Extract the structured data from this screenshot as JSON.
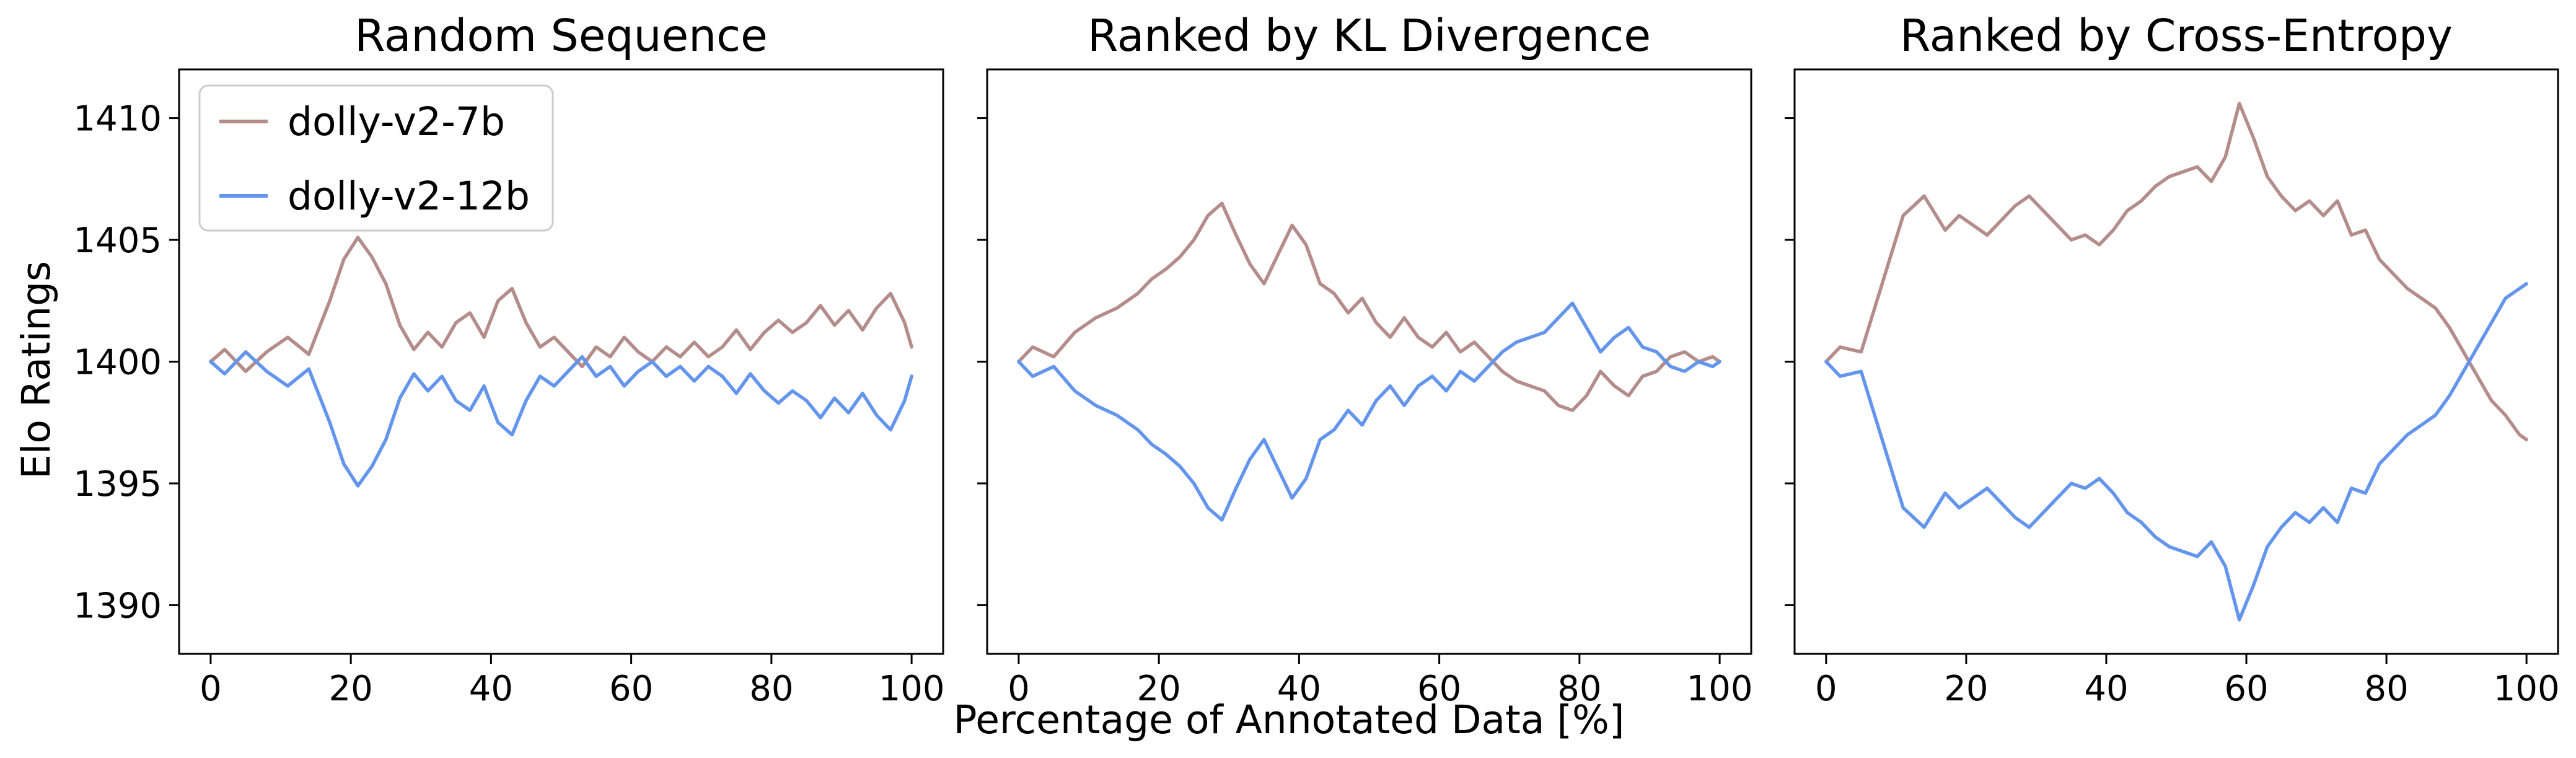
{
  "figure": {
    "xlabel": "Percentage of Annotated Data [%]",
    "ylabel": "Elo Ratings"
  },
  "colors": {
    "dolly-v2-7b": "#b48c8a",
    "dolly-v2-12b": "#6495ed"
  },
  "legend": {
    "placement": "upper-left",
    "entries": [
      "dolly-v2-7b",
      "dolly-v2-12b"
    ]
  },
  "chart_data": [
    {
      "type": "line",
      "title": "Random Sequence",
      "xlim": [
        0,
        100
      ],
      "ylim": [
        1388,
        1412
      ],
      "xticks": [
        0,
        20,
        40,
        60,
        80,
        100
      ],
      "yticks": [
        1390,
        1395,
        1400,
        1405,
        1410
      ],
      "x": [
        0,
        2,
        5,
        8,
        11,
        14,
        17,
        19,
        21,
        23,
        25,
        27,
        29,
        31,
        33,
        35,
        37,
        39,
        41,
        43,
        45,
        47,
        49,
        51,
        53,
        55,
        57,
        59,
        61,
        63,
        65,
        67,
        69,
        71,
        73,
        75,
        77,
        79,
        81,
        83,
        85,
        87,
        89,
        91,
        93,
        95,
        97,
        99,
        100
      ],
      "series": [
        {
          "name": "dolly-v2-7b",
          "values": [
            1400.0,
            1400.5,
            1399.6,
            1400.4,
            1401.0,
            1400.3,
            1402.5,
            1404.2,
            1405.1,
            1404.3,
            1403.2,
            1401.5,
            1400.5,
            1401.2,
            1400.6,
            1401.6,
            1402.0,
            1401.0,
            1402.5,
            1403.0,
            1401.6,
            1400.6,
            1401.0,
            1400.4,
            1399.8,
            1400.6,
            1400.2,
            1401.0,
            1400.4,
            1400.0,
            1400.6,
            1400.2,
            1400.8,
            1400.2,
            1400.6,
            1401.3,
            1400.5,
            1401.2,
            1401.7,
            1401.2,
            1401.6,
            1402.3,
            1401.5,
            1402.1,
            1401.3,
            1402.2,
            1402.8,
            1401.6,
            1400.6
          ]
        },
        {
          "name": "dolly-v2-12b",
          "values": [
            1400.0,
            1399.5,
            1400.4,
            1399.6,
            1399.0,
            1399.7,
            1397.5,
            1395.8,
            1394.9,
            1395.7,
            1396.8,
            1398.5,
            1399.5,
            1398.8,
            1399.4,
            1398.4,
            1398.0,
            1399.0,
            1397.5,
            1397.0,
            1398.4,
            1399.4,
            1399.0,
            1399.6,
            1400.2,
            1399.4,
            1399.8,
            1399.0,
            1399.6,
            1400.0,
            1399.4,
            1399.8,
            1399.2,
            1399.8,
            1399.4,
            1398.7,
            1399.5,
            1398.8,
            1398.3,
            1398.8,
            1398.4,
            1397.7,
            1398.5,
            1397.9,
            1398.7,
            1397.8,
            1397.2,
            1398.4,
            1399.4
          ]
        }
      ]
    },
    {
      "type": "line",
      "title": "Ranked by KL Divergence",
      "xlim": [
        0,
        100
      ],
      "ylim": [
        1388,
        1412
      ],
      "xticks": [
        0,
        20,
        40,
        60,
        80,
        100
      ],
      "yticks": [
        1390,
        1395,
        1400,
        1405,
        1410
      ],
      "x": [
        0,
        2,
        5,
        8,
        11,
        14,
        17,
        19,
        21,
        23,
        25,
        27,
        29,
        31,
        33,
        35,
        37,
        39,
        41,
        43,
        45,
        47,
        49,
        51,
        53,
        55,
        57,
        59,
        61,
        63,
        65,
        67,
        69,
        71,
        73,
        75,
        77,
        79,
        81,
        83,
        85,
        87,
        89,
        91,
        93,
        95,
        97,
        99,
        100
      ],
      "series": [
        {
          "name": "dolly-v2-7b",
          "values": [
            1400.0,
            1400.6,
            1400.2,
            1401.2,
            1401.8,
            1402.2,
            1402.8,
            1403.4,
            1403.8,
            1404.3,
            1405.0,
            1406.0,
            1406.5,
            1405.2,
            1404.0,
            1403.2,
            1404.4,
            1405.6,
            1404.8,
            1403.2,
            1402.8,
            1402.0,
            1402.6,
            1401.6,
            1401.0,
            1401.8,
            1401.0,
            1400.6,
            1401.2,
            1400.4,
            1400.8,
            1400.2,
            1399.6,
            1399.2,
            1399.0,
            1398.8,
            1398.2,
            1398.0,
            1398.6,
            1399.6,
            1399.0,
            1398.6,
            1399.4,
            1399.6,
            1400.2,
            1400.4,
            1400.0,
            1400.2,
            1400.0
          ]
        },
        {
          "name": "dolly-v2-12b",
          "values": [
            1400.0,
            1399.4,
            1399.8,
            1398.8,
            1398.2,
            1397.8,
            1397.2,
            1396.6,
            1396.2,
            1395.7,
            1395.0,
            1394.0,
            1393.5,
            1394.8,
            1396.0,
            1396.8,
            1395.6,
            1394.4,
            1395.2,
            1396.8,
            1397.2,
            1398.0,
            1397.4,
            1398.4,
            1399.0,
            1398.2,
            1399.0,
            1399.4,
            1398.8,
            1399.6,
            1399.2,
            1399.8,
            1400.4,
            1400.8,
            1401.0,
            1401.2,
            1401.8,
            1402.4,
            1401.4,
            1400.4,
            1401.0,
            1401.4,
            1400.6,
            1400.4,
            1399.8,
            1399.6,
            1400.0,
            1399.8,
            1400.0
          ]
        }
      ]
    },
    {
      "type": "line",
      "title": "Ranked by Cross-Entropy",
      "xlim": [
        0,
        100
      ],
      "ylim": [
        1388,
        1412
      ],
      "xticks": [
        0,
        20,
        40,
        60,
        80,
        100
      ],
      "yticks": [
        1390,
        1395,
        1400,
        1405,
        1410
      ],
      "x": [
        0,
        2,
        5,
        8,
        11,
        14,
        17,
        19,
        21,
        23,
        25,
        27,
        29,
        31,
        33,
        35,
        37,
        39,
        41,
        43,
        45,
        47,
        49,
        51,
        53,
        55,
        57,
        59,
        61,
        63,
        65,
        67,
        69,
        71,
        73,
        75,
        77,
        79,
        81,
        83,
        85,
        87,
        89,
        91,
        93,
        95,
        97,
        99,
        100
      ],
      "series": [
        {
          "name": "dolly-v2-7b",
          "values": [
            1400.0,
            1400.6,
            1400.4,
            1403.2,
            1406.0,
            1406.8,
            1405.4,
            1406.0,
            1405.6,
            1405.2,
            1405.8,
            1406.4,
            1406.8,
            1406.2,
            1405.6,
            1405.0,
            1405.2,
            1404.8,
            1405.4,
            1406.2,
            1406.6,
            1407.2,
            1407.6,
            1407.8,
            1408.0,
            1407.4,
            1408.4,
            1410.6,
            1409.2,
            1407.6,
            1406.8,
            1406.2,
            1406.6,
            1406.0,
            1406.6,
            1405.2,
            1405.4,
            1404.2,
            1403.6,
            1403.0,
            1402.6,
            1402.2,
            1401.4,
            1400.4,
            1399.4,
            1398.4,
            1397.8,
            1397.0,
            1396.8
          ]
        },
        {
          "name": "dolly-v2-12b",
          "values": [
            1400.0,
            1399.4,
            1399.6,
            1396.8,
            1394.0,
            1393.2,
            1394.6,
            1394.0,
            1394.4,
            1394.8,
            1394.2,
            1393.6,
            1393.2,
            1393.8,
            1394.4,
            1395.0,
            1394.8,
            1395.2,
            1394.6,
            1393.8,
            1393.4,
            1392.8,
            1392.4,
            1392.2,
            1392.0,
            1392.6,
            1391.6,
            1389.4,
            1390.8,
            1392.4,
            1393.2,
            1393.8,
            1393.4,
            1394.0,
            1393.4,
            1394.8,
            1394.6,
            1395.8,
            1396.4,
            1397.0,
            1397.4,
            1397.8,
            1398.6,
            1399.6,
            1400.6,
            1401.6,
            1402.6,
            1403.0,
            1403.2
          ]
        }
      ]
    }
  ]
}
